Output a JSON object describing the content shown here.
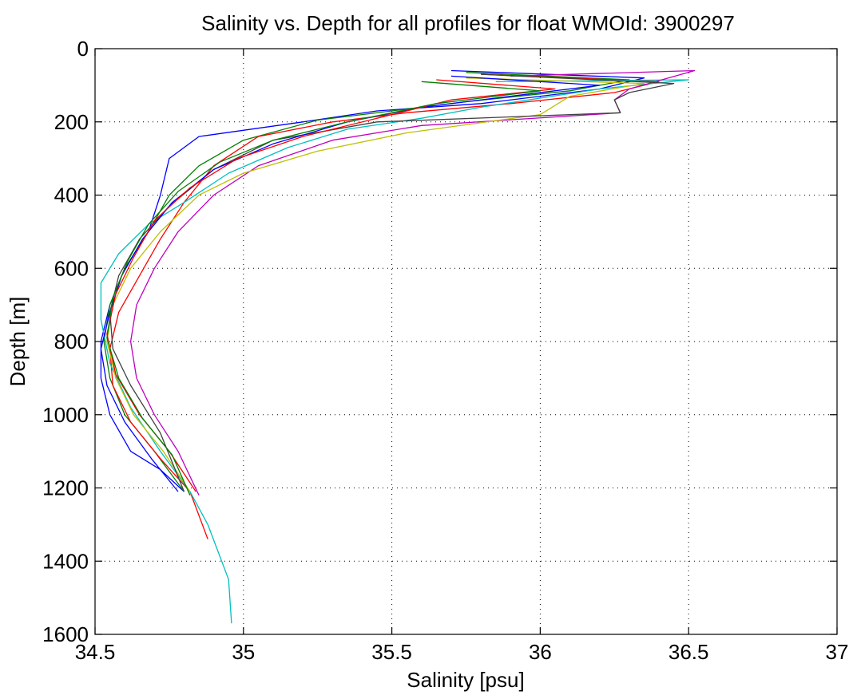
{
  "chart_data": {
    "type": "line",
    "title": "Salinity vs. Depth for all profiles for float WMOId: 3900297",
    "xlabel": "Salinity [psu]",
    "ylabel": "Depth [m]",
    "xlim": [
      34.5,
      37
    ],
    "ylim": [
      0,
      1600
    ],
    "y_reversed": true,
    "grid": true,
    "xticks": [
      34.5,
      35,
      35.5,
      36,
      36.5,
      37
    ],
    "yticks": [
      0,
      200,
      400,
      600,
      800,
      1000,
      1200,
      1400,
      1600
    ],
    "xtick_labels": [
      "34.5",
      "35",
      "35.5",
      "36",
      "36.5",
      "37"
    ],
    "ytick_labels": [
      "0",
      "200",
      "400",
      "600",
      "800",
      "1000",
      "1200",
      "1400",
      "1600"
    ],
    "colors": [
      "#0000ff",
      "#008000",
      "#ff0000",
      "#00bfbf",
      "#bf00bf",
      "#bfbf00",
      "#404040"
    ],
    "series": [
      {
        "color": "#0000ff",
        "salinity": [
          35.7,
          36.35,
          36.2,
          35.8,
          35.45,
          35.2,
          34.85,
          34.75,
          34.72,
          34.68,
          34.6,
          34.55,
          34.52,
          34.52,
          34.55,
          34.62,
          34.72,
          34.8
        ],
        "depth": [
          60,
          80,
          110,
          150,
          170,
          200,
          240,
          300,
          400,
          500,
          600,
          700,
          800,
          900,
          1000,
          1100,
          1150,
          1210
        ]
      },
      {
        "color": "#008000",
        "salinity": [
          35.75,
          36.3,
          36.1,
          35.75,
          35.5,
          35.25,
          35.0,
          34.85,
          34.75,
          34.68,
          34.6,
          34.55,
          34.53,
          34.55,
          34.6,
          34.7,
          34.8
        ],
        "depth": [
          65,
          85,
          115,
          145,
          170,
          195,
          250,
          320,
          400,
          500,
          600,
          700,
          800,
          900,
          1000,
          1100,
          1210
        ]
      },
      {
        "color": "#ff0000",
        "salinity": [
          35.8,
          36.4,
          36.25,
          35.9,
          35.55,
          35.3,
          35.05,
          34.9,
          34.8,
          34.72,
          34.65,
          34.58,
          34.55,
          34.56,
          34.62,
          34.72,
          34.82,
          34.88
        ],
        "depth": [
          70,
          90,
          120,
          150,
          175,
          200,
          240,
          320,
          420,
          520,
          620,
          720,
          820,
          920,
          1020,
          1120,
          1210,
          1340
        ]
      },
      {
        "color": "#00bfbf",
        "salinity": [
          35.85,
          36.5,
          36.2,
          35.8,
          35.6,
          35.35,
          35.15,
          34.95,
          34.8,
          34.68,
          34.58,
          34.52,
          34.52,
          34.55,
          34.62,
          34.72,
          34.82,
          34.88,
          34.95,
          34.96
        ],
        "depth": [
          90,
          85,
          110,
          160,
          190,
          220,
          270,
          340,
          420,
          480,
          560,
          640,
          740,
          860,
          980,
          1100,
          1210,
          1300,
          1450,
          1570
        ]
      },
      {
        "color": "#bf00bf",
        "salinity": [
          35.9,
          36.52,
          36.3,
          36.25,
          36.27,
          35.6,
          35.3,
          35.05,
          34.9,
          34.78,
          34.7,
          34.64,
          34.62,
          34.64,
          34.7,
          34.78,
          34.85
        ],
        "depth": [
          75,
          60,
          110,
          140,
          175,
          210,
          250,
          320,
          400,
          500,
          600,
          700,
          800,
          900,
          1000,
          1100,
          1220
        ]
      },
      {
        "color": "#bfbf00",
        "salinity": [
          35.75,
          36.35,
          36.1,
          36.0,
          35.55,
          35.25,
          35.0,
          34.85,
          34.72,
          34.62,
          34.56,
          34.54,
          34.57,
          34.63,
          34.73,
          34.82
        ],
        "depth": [
          80,
          95,
          130,
          180,
          230,
          280,
          340,
          400,
          500,
          600,
          700,
          800,
          900,
          1000,
          1100,
          1210
        ]
      },
      {
        "color": "#404040",
        "salinity": [
          35.8,
          36.45,
          36.3,
          36.25,
          36.27,
          35.45,
          35.1,
          34.9,
          34.75,
          34.65,
          34.58,
          34.55,
          34.56,
          34.62,
          34.72,
          34.8
        ],
        "depth": [
          70,
          95,
          120,
          140,
          175,
          200,
          250,
          330,
          430,
          520,
          620,
          720,
          820,
          920,
          1050,
          1210
        ]
      },
      {
        "color": "#0000ff",
        "salinity": [
          35.7,
          36.2,
          35.95,
          35.6,
          35.35,
          35.1,
          34.9,
          34.76,
          34.66,
          34.59,
          34.55,
          34.52,
          34.54,
          34.6,
          34.69,
          34.78
        ],
        "depth": [
          75,
          100,
          125,
          160,
          200,
          260,
          330,
          420,
          520,
          620,
          720,
          820,
          920,
          1020,
          1120,
          1210
        ]
      },
      {
        "color": "#ff0000",
        "salinity": [
          35.65,
          36.05,
          35.7,
          35.45,
          35.2,
          34.98,
          34.82,
          34.7,
          34.63,
          34.57,
          34.54,
          34.57,
          34.65,
          34.75,
          34.84
        ],
        "depth": [
          85,
          110,
          140,
          190,
          240,
          300,
          380,
          470,
          570,
          670,
          780,
          890,
          1000,
          1100,
          1210
        ]
      },
      {
        "color": "#008000",
        "salinity": [
          35.6,
          36.0,
          35.65,
          35.35,
          35.1,
          34.92,
          34.78,
          34.68,
          34.61,
          34.56,
          34.54,
          34.58,
          34.66,
          34.76,
          34.82
        ],
        "depth": [
          90,
          115,
          150,
          200,
          250,
          310,
          390,
          480,
          580,
          680,
          790,
          900,
          1010,
          1110,
          1220
        ]
      }
    ]
  }
}
